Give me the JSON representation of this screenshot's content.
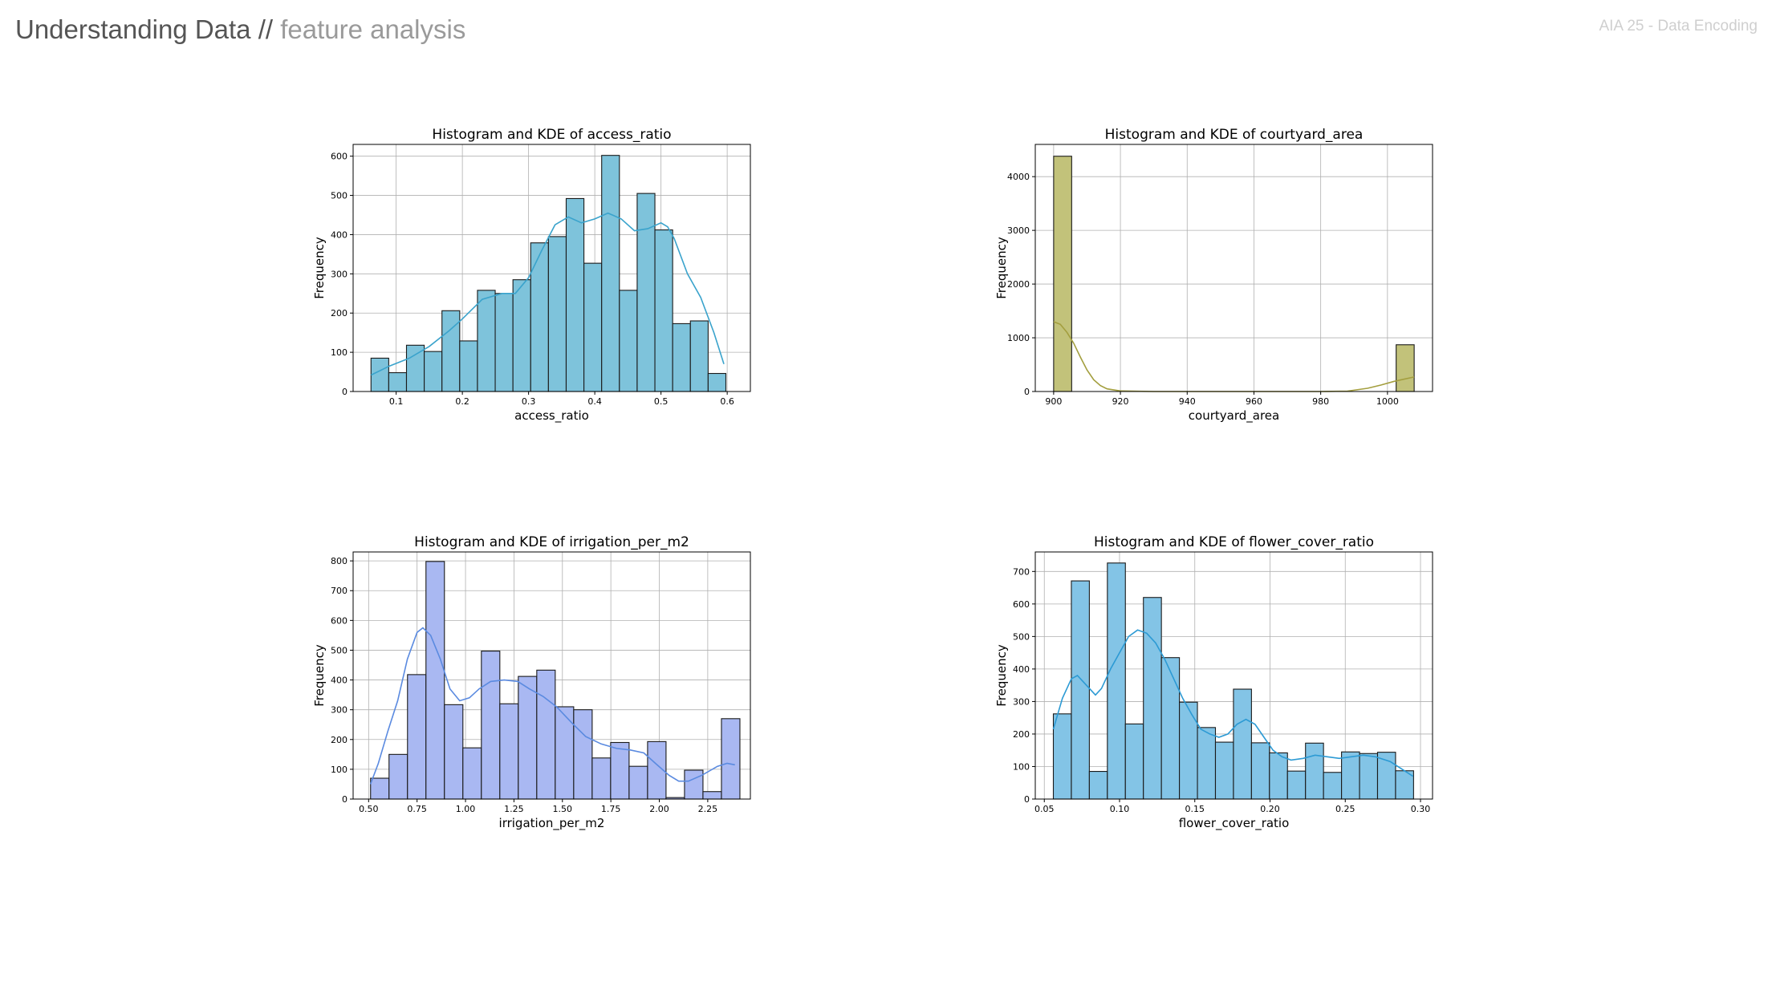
{
  "header": {
    "title": "Understanding Data //",
    "subtitle": "feature analysis",
    "course": "AIA 25 - Data Encoding"
  },
  "chart_data": [
    {
      "type": "bar",
      "title": "Histogram and KDE of access_ratio",
      "xlabel": "access_ratio",
      "ylabel": "Frequency",
      "color": "#7ec3db",
      "kde_color": "#3aa3cc",
      "xlim": [
        0.035,
        0.635
      ],
      "ylim": [
        0,
        630
      ],
      "xticks": [
        0.1,
        0.2,
        0.3,
        0.4,
        0.5,
        0.6
      ],
      "xticklabels": [
        "0.1",
        "0.2",
        "0.3",
        "0.4",
        "0.5",
        "0.6"
      ],
      "yticks": [
        0,
        100,
        200,
        300,
        400,
        500,
        600
      ],
      "yticklabels": [
        "0",
        "100",
        "200",
        "300",
        "400",
        "500",
        "600"
      ],
      "bin_start": 0.062,
      "bin_width": 0.0268,
      "values": [
        85,
        48,
        118,
        102,
        206,
        129,
        258,
        250,
        285,
        379,
        395,
        492,
        327,
        602,
        258,
        505,
        412,
        173,
        180,
        46
      ],
      "kde": [
        [
          0.062,
          42
        ],
        [
          0.09,
          65
        ],
        [
          0.12,
          85
        ],
        [
          0.15,
          115
        ],
        [
          0.18,
          155
        ],
        [
          0.2,
          185
        ],
        [
          0.23,
          235
        ],
        [
          0.26,
          250
        ],
        [
          0.28,
          250
        ],
        [
          0.3,
          290
        ],
        [
          0.32,
          360
        ],
        [
          0.34,
          425
        ],
        [
          0.36,
          445
        ],
        [
          0.38,
          430
        ],
        [
          0.4,
          440
        ],
        [
          0.42,
          455
        ],
        [
          0.44,
          440
        ],
        [
          0.46,
          410
        ],
        [
          0.48,
          415
        ],
        [
          0.5,
          430
        ],
        [
          0.51,
          420
        ],
        [
          0.52,
          390
        ],
        [
          0.54,
          300
        ],
        [
          0.56,
          240
        ],
        [
          0.58,
          150
        ],
        [
          0.595,
          70
        ]
      ],
      "grid": true
    },
    {
      "type": "bar",
      "title": "Histogram and KDE of courtyard_area",
      "xlabel": "courtyard_area",
      "ylabel": "Frequency",
      "color": "#c2c27a",
      "kde_color": "#a39e3e",
      "xlim": [
        894.5,
        1013.5
      ],
      "ylim": [
        0,
        4600
      ],
      "xticks": [
        900,
        920,
        940,
        960,
        980,
        1000
      ],
      "xticklabels": [
        "900",
        "920",
        "940",
        "960",
        "980",
        "1000"
      ],
      "yticks": [
        0,
        1000,
        2000,
        3000,
        4000
      ],
      "yticklabels": [
        "0",
        "1000",
        "2000",
        "3000",
        "4000"
      ],
      "bin_start": 900,
      "bin_width": 5.4,
      "values": [
        4380,
        0,
        0,
        0,
        0,
        0,
        0,
        0,
        0,
        0,
        0,
        0,
        0,
        0,
        0,
        0,
        0,
        0,
        0,
        870
      ],
      "kde": [
        [
          900,
          1300
        ],
        [
          902,
          1250
        ],
        [
          904,
          1100
        ],
        [
          906,
          900
        ],
        [
          908,
          640
        ],
        [
          910,
          400
        ],
        [
          912,
          220
        ],
        [
          914,
          110
        ],
        [
          916,
          50
        ],
        [
          920,
          10
        ],
        [
          930,
          0
        ],
        [
          980,
          0
        ],
        [
          988,
          8
        ],
        [
          994,
          60
        ],
        [
          998,
          120
        ],
        [
          1002,
          190
        ],
        [
          1008,
          270
        ]
      ],
      "grid": true
    },
    {
      "type": "bar",
      "title": "Histogram and KDE of irrigation_per_m2",
      "xlabel": "irrigation_per_m2",
      "ylabel": "Frequency",
      "color": "#a9b8f2",
      "kde_color": "#5a8ae0",
      "xlim": [
        0.42,
        2.47
      ],
      "ylim": [
        0,
        830
      ],
      "xticks": [
        0.5,
        0.75,
        1.0,
        1.25,
        1.5,
        1.75,
        2.0,
        2.25
      ],
      "xticklabels": [
        "0.50",
        "0.75",
        "1.00",
        "1.25",
        "1.50",
        "1.75",
        "2.00",
        "2.25"
      ],
      "yticks": [
        0,
        100,
        200,
        300,
        400,
        500,
        600,
        700,
        800
      ],
      "yticklabels": [
        "0",
        "100",
        "200",
        "300",
        "400",
        "500",
        "600",
        "700",
        "800"
      ],
      "bin_start": 0.51,
      "bin_width": 0.0953,
      "values": [
        70,
        150,
        418,
        798,
        317,
        172,
        497,
        320,
        412,
        433,
        310,
        300,
        138,
        190,
        110,
        193,
        5,
        97,
        25,
        270
      ],
      "kde": [
        [
          0.51,
          50
        ],
        [
          0.55,
          120
        ],
        [
          0.6,
          230
        ],
        [
          0.65,
          330
        ],
        [
          0.7,
          470
        ],
        [
          0.75,
          560
        ],
        [
          0.78,
          575
        ],
        [
          0.82,
          550
        ],
        [
          0.87,
          470
        ],
        [
          0.92,
          370
        ],
        [
          0.97,
          330
        ],
        [
          1.02,
          340
        ],
        [
          1.07,
          370
        ],
        [
          1.13,
          395
        ],
        [
          1.2,
          400
        ],
        [
          1.27,
          395
        ],
        [
          1.33,
          370
        ],
        [
          1.4,
          345
        ],
        [
          1.47,
          310
        ],
        [
          1.55,
          255
        ],
        [
          1.62,
          210
        ],
        [
          1.7,
          185
        ],
        [
          1.78,
          170
        ],
        [
          1.85,
          165
        ],
        [
          1.92,
          155
        ],
        [
          1.98,
          120
        ],
        [
          2.05,
          80
        ],
        [
          2.1,
          60
        ],
        [
          2.15,
          60
        ],
        [
          2.22,
          80
        ],
        [
          2.3,
          110
        ],
        [
          2.35,
          120
        ],
        [
          2.39,
          115
        ]
      ],
      "grid": true
    },
    {
      "type": "bar",
      "title": "Histogram and KDE of flower_cover_ratio",
      "xlabel": "flower_cover_ratio",
      "ylabel": "Frequency",
      "color": "#83c4e6",
      "kde_color": "#2c9ad4",
      "xlim": [
        0.044,
        0.308
      ],
      "ylim": [
        0,
        760
      ],
      "xticks": [
        0.05,
        0.1,
        0.15,
        0.2,
        0.25,
        0.3
      ],
      "xticklabels": [
        "0.05",
        "0.10",
        "0.15",
        "0.20",
        "0.25",
        "0.30"
      ],
      "yticks": [
        0,
        100,
        200,
        300,
        400,
        500,
        600,
        700
      ],
      "yticklabels": [
        "0",
        "100",
        "200",
        "300",
        "400",
        "500",
        "600",
        "700"
      ],
      "bin_start": 0.056,
      "bin_width": 0.01197,
      "values": [
        262,
        671,
        85,
        726,
        231,
        620,
        435,
        298,
        220,
        175,
        338,
        173,
        142,
        86,
        172,
        82,
        145,
        140,
        144,
        87
      ],
      "kde": [
        [
          0.056,
          215
        ],
        [
          0.062,
          310
        ],
        [
          0.068,
          370
        ],
        [
          0.072,
          380
        ],
        [
          0.078,
          350
        ],
        [
          0.084,
          320
        ],
        [
          0.088,
          340
        ],
        [
          0.094,
          400
        ],
        [
          0.1,
          450
        ],
        [
          0.106,
          500
        ],
        [
          0.112,
          520
        ],
        [
          0.118,
          510
        ],
        [
          0.124,
          480
        ],
        [
          0.13,
          430
        ],
        [
          0.136,
          370
        ],
        [
          0.142,
          310
        ],
        [
          0.148,
          260
        ],
        [
          0.154,
          215
        ],
        [
          0.16,
          200
        ],
        [
          0.166,
          190
        ],
        [
          0.172,
          200
        ],
        [
          0.178,
          230
        ],
        [
          0.184,
          245
        ],
        [
          0.19,
          230
        ],
        [
          0.196,
          190
        ],
        [
          0.202,
          150
        ],
        [
          0.208,
          130
        ],
        [
          0.214,
          120
        ],
        [
          0.222,
          125
        ],
        [
          0.23,
          135
        ],
        [
          0.238,
          130
        ],
        [
          0.246,
          125
        ],
        [
          0.254,
          130
        ],
        [
          0.262,
          135
        ],
        [
          0.27,
          130
        ],
        [
          0.28,
          115
        ],
        [
          0.29,
          85
        ],
        [
          0.295,
          70
        ]
      ],
      "grid": true
    }
  ]
}
